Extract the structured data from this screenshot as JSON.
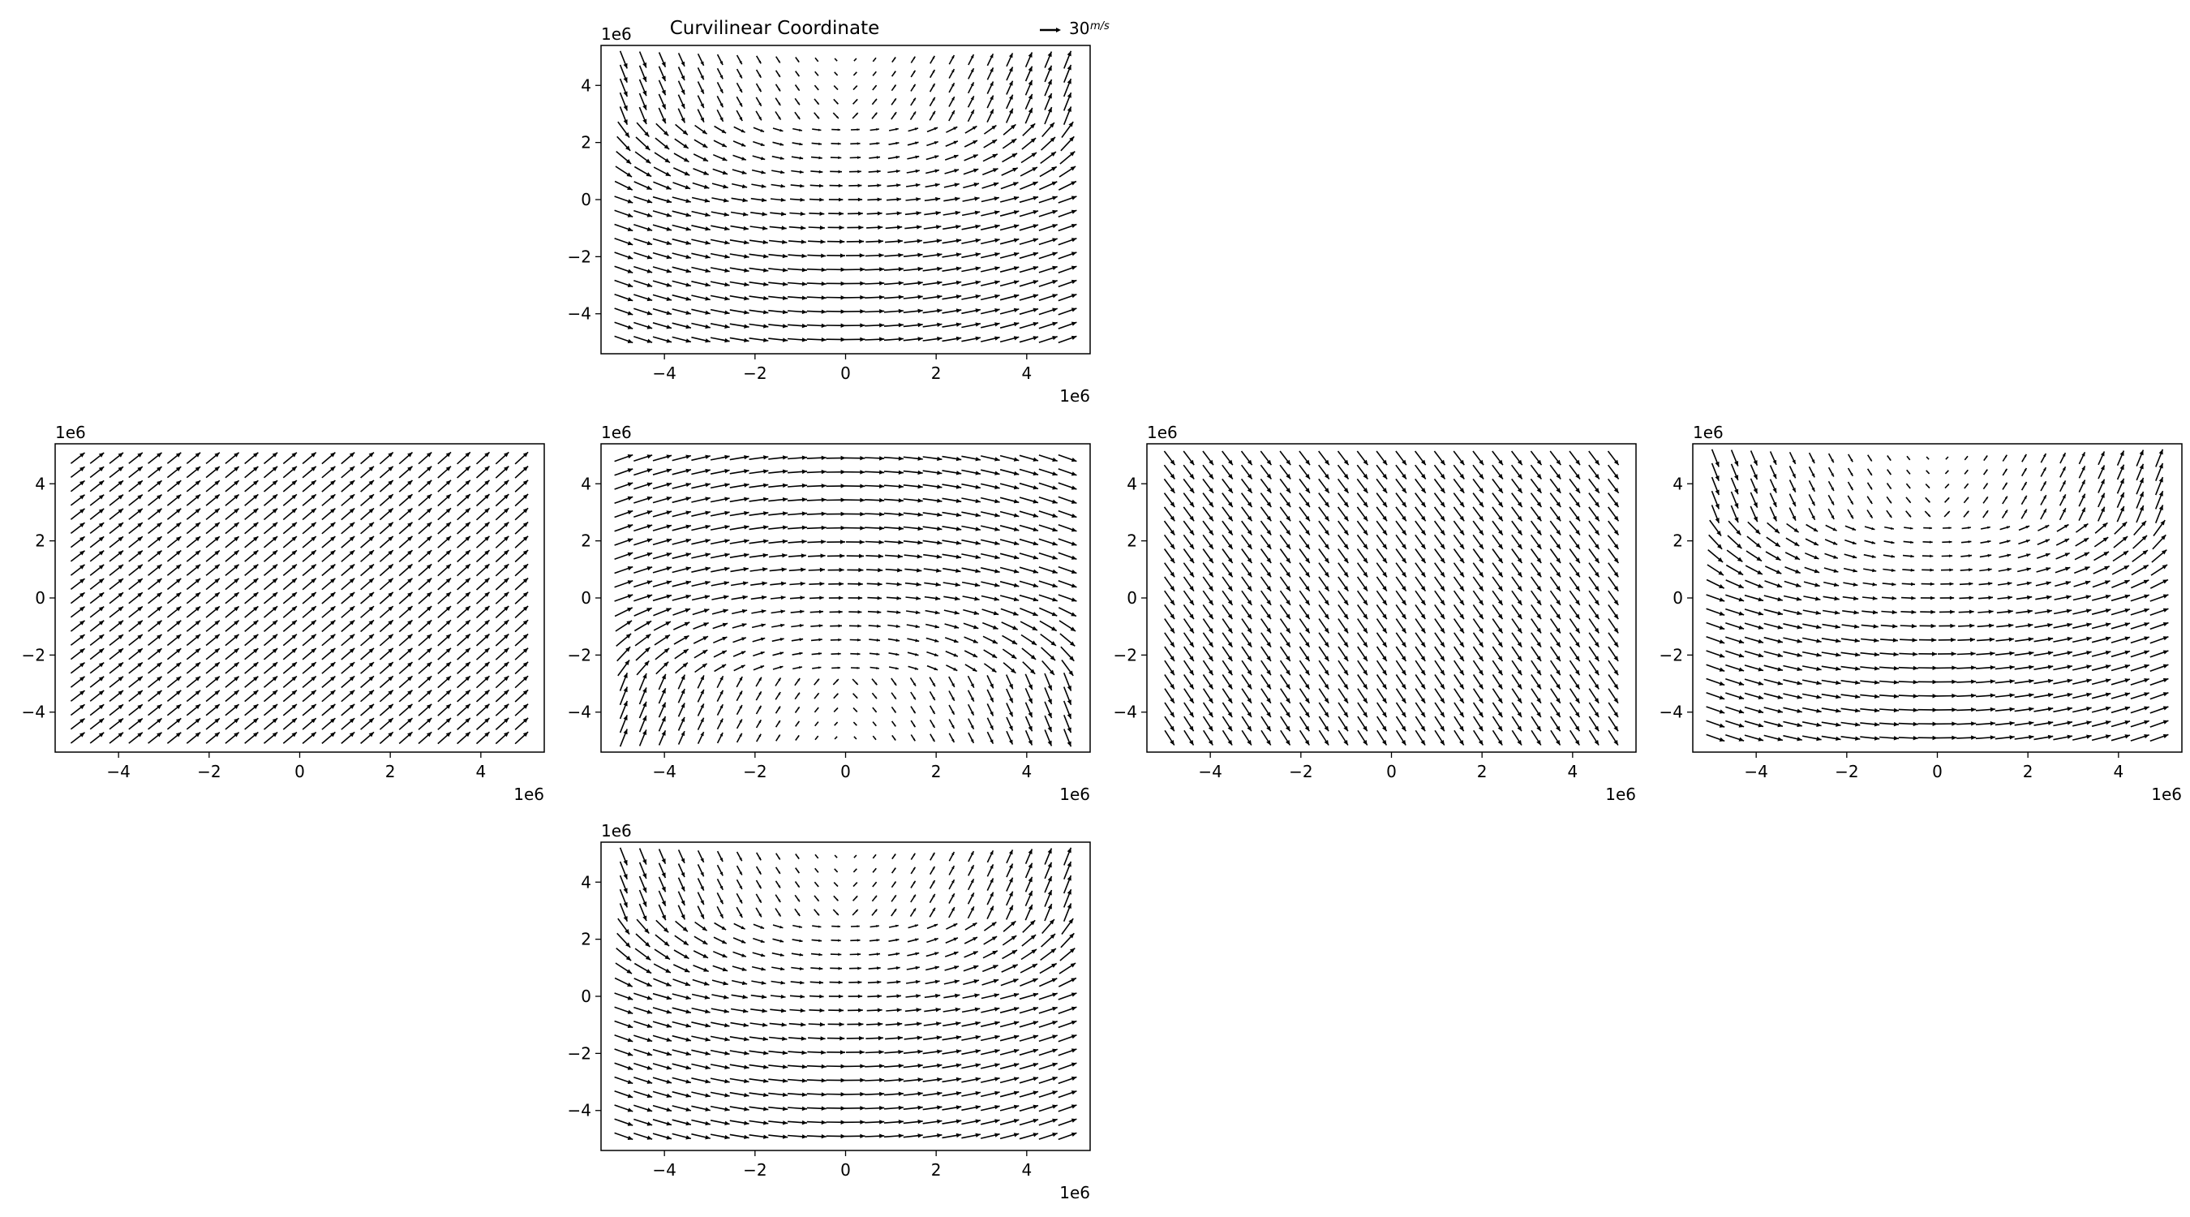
{
  "figure": {
    "title": "Curvilinear Coordinate",
    "quiver_key": {
      "value": "30",
      "unit": "m/s"
    },
    "axis_offset_label": "1e6"
  },
  "chart_data": [
    {
      "panel": "face-top",
      "type": "quiver",
      "x_ticks": [
        "−4",
        "−2",
        "0",
        "2",
        "4"
      ],
      "y_ticks": [
        "−4",
        "−2",
        "0",
        "2",
        "4"
      ],
      "x_offset": "1e6",
      "y_offset": "1e6",
      "xlim": [
        -5400000.0,
        5400000.0
      ],
      "ylim": [
        -5400000.0,
        5400000.0
      ],
      "grid": {
        "nx": 24,
        "ny": 21,
        "range": [
          -4900000.0,
          4900000.0
        ]
      },
      "field": "streamlines bowing downward toward the bottom, vectors weak near top-center"
    },
    {
      "panel": "face-left",
      "type": "quiver",
      "x_ticks": [
        "−4",
        "−2",
        "0",
        "2",
        "4"
      ],
      "y_ticks": [
        "−4",
        "−2",
        "0",
        "2",
        "4"
      ],
      "x_offset": "1e6",
      "y_offset": "1e6",
      "xlim": [
        -5400000.0,
        5400000.0
      ],
      "ylim": [
        -5400000.0,
        5400000.0
      ],
      "grid": {
        "nx": 24,
        "ny": 21,
        "range": [
          -4900000.0,
          4900000.0
        ]
      },
      "field": "nearly uniform flow toward the upper right at about 40 degrees"
    },
    {
      "panel": "face-center",
      "type": "quiver",
      "x_ticks": [
        "−4",
        "−2",
        "0",
        "2",
        "4"
      ],
      "y_ticks": [
        "−4",
        "−2",
        "0",
        "2",
        "4"
      ],
      "x_offset": "1e6",
      "y_offset": "1e6",
      "xlim": [
        -5400000.0,
        5400000.0
      ],
      "ylim": [
        -5400000.0,
        5400000.0
      ],
      "grid": {
        "nx": 24,
        "ny": 21,
        "range": [
          -4900000.0,
          4900000.0
        ]
      },
      "field": "streamlines bowing upward, vectors weak near bottom-center"
    },
    {
      "panel": "face-right",
      "type": "quiver",
      "x_ticks": [
        "−4",
        "−2",
        "0",
        "2",
        "4"
      ],
      "y_ticks": [
        "−4",
        "−2",
        "0",
        "2",
        "4"
      ],
      "x_offset": "1e6",
      "y_offset": "1e6",
      "xlim": [
        -5400000.0,
        5400000.0
      ],
      "ylim": [
        -5400000.0,
        5400000.0
      ],
      "grid": {
        "nx": 24,
        "ny": 21,
        "range": [
          -4900000.0,
          4900000.0
        ]
      },
      "field": "nearly uniform flow toward the lower right at about -55 degrees"
    },
    {
      "panel": "face-back",
      "type": "quiver",
      "x_ticks": [
        "−4",
        "−2",
        "0",
        "2",
        "4"
      ],
      "y_ticks": [
        "−4",
        "−2",
        "0",
        "2",
        "4"
      ],
      "x_offset": "1e6",
      "y_offset": "1e6",
      "xlim": [
        -5400000.0,
        5400000.0
      ],
      "ylim": [
        -5400000.0,
        5400000.0
      ],
      "grid": {
        "nx": 24,
        "ny": 21,
        "range": [
          -4900000.0,
          4900000.0
        ]
      },
      "field": "streamlines bowing downward, vectors weak near top-center"
    },
    {
      "panel": "face-bottom",
      "type": "quiver",
      "x_ticks": [
        "−4",
        "−2",
        "0",
        "2",
        "4"
      ],
      "y_ticks": [
        "−4",
        "−2",
        "0",
        "2",
        "4"
      ],
      "x_offset": "1e6",
      "y_offset": "1e6",
      "xlim": [
        -5400000.0,
        5400000.0
      ],
      "ylim": [
        -5400000.0,
        5400000.0
      ],
      "grid": {
        "nx": 24,
        "ny": 21,
        "range": [
          -4900000.0,
          4900000.0
        ]
      },
      "field": "streamlines bowing downward, vectors weak near top-center"
    }
  ]
}
